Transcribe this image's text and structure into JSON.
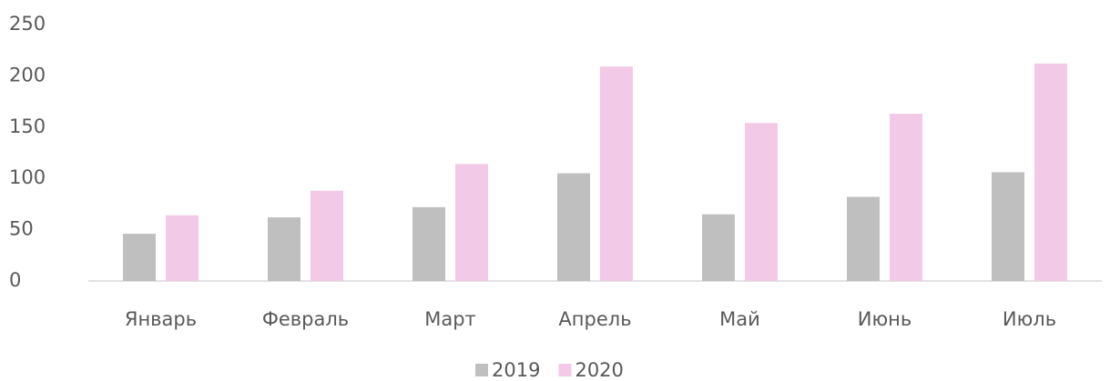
{
  "chart_data": {
    "type": "bar",
    "categories": [
      "Январь",
      "Февраль",
      "Март",
      "Апрель",
      "Май",
      "Июнь",
      "Июль"
    ],
    "series": [
      {
        "name": "2019",
        "color": "#bfbfbf",
        "values": [
          46,
          62,
          72,
          105,
          65,
          82,
          106
        ]
      },
      {
        "name": "2020",
        "color": "#f2c9e6",
        "values": [
          64,
          88,
          114,
          209,
          154,
          163,
          212
        ]
      }
    ],
    "ylim": [
      0,
      250
    ],
    "yticks": [
      0,
      50,
      100,
      150,
      200,
      250
    ],
    "grid": false,
    "legend": "bottom"
  }
}
